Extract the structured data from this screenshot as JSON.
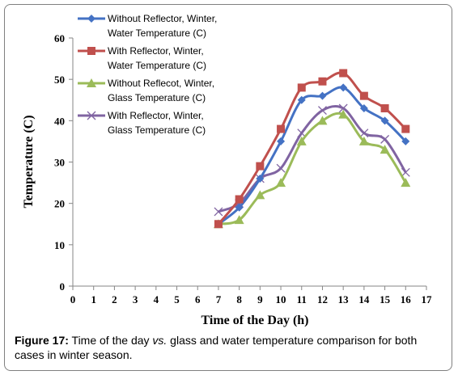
{
  "chart_data": {
    "type": "line",
    "xlabel": "Time of the Day (h)",
    "ylabel": "Temperature (C)",
    "xlim": [
      0,
      17
    ],
    "ylim": [
      0,
      60
    ],
    "x_ticks": [
      0,
      1,
      2,
      3,
      4,
      5,
      6,
      7,
      8,
      9,
      10,
      11,
      12,
      13,
      14,
      15,
      16,
      17
    ],
    "y_ticks": [
      0,
      10,
      20,
      30,
      40,
      50,
      60
    ],
    "grid": false,
    "legend_position": "top-left",
    "x": [
      7,
      8,
      9,
      10,
      11,
      12,
      13,
      14,
      15,
      16
    ],
    "series": [
      {
        "name_lines": [
          "Without Reflector, Winter,",
          "Water Temperature (C)"
        ],
        "color": "#4472C4",
        "marker": "diamond",
        "values": [
          15,
          19,
          26,
          35,
          45,
          46,
          48,
          43,
          40,
          35
        ]
      },
      {
        "name_lines": [
          "With Reflector, Winter,",
          "Water Temperature (C)"
        ],
        "color": "#C0504D",
        "marker": "square",
        "values": [
          15,
          21,
          29,
          38,
          48,
          49.5,
          51.5,
          46,
          43,
          38
        ]
      },
      {
        "name_lines": [
          "Without Reflecot, Winter,",
          "Glass Temperature (C)"
        ],
        "color": "#9BBB59",
        "marker": "triangle",
        "values": [
          15,
          16,
          22,
          25,
          35,
          40,
          41.5,
          35,
          33,
          25
        ]
      },
      {
        "name_lines": [
          "With Reflector, Winter,",
          "Glass Temperature (C)"
        ],
        "color": "#8064A2",
        "marker": "x",
        "values": [
          18,
          20,
          26,
          28.5,
          37,
          42.5,
          43,
          37,
          35.5,
          27.5
        ]
      }
    ]
  },
  "caption": {
    "label": "Figure 17:",
    "text_before": " Time of the day ",
    "text_italic": "vs.",
    "text_after": " glass and water temperature comparison for both cases in winter season."
  }
}
